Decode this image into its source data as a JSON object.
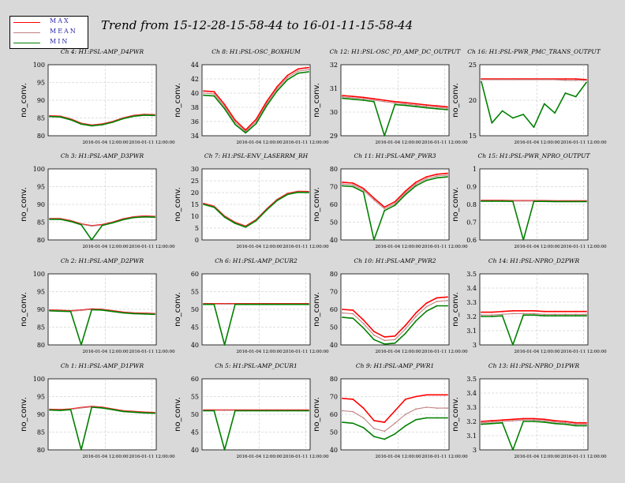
{
  "title": "Trend from 15-12-28-15-58-44 to 16-01-11-15-58-44",
  "legend": [
    {
      "label": "MAX",
      "color": "#ff0000"
    },
    {
      "label": "MEAN",
      "color": "#c08080"
    },
    {
      "label": "MIN",
      "color": "#008000"
    }
  ],
  "colors": {
    "max": "#ff0000",
    "mean": "#c08080",
    "min": "#008000",
    "panel_bg": "#ffffff",
    "grid": "#bfbfbf"
  },
  "chart_data": [
    {
      "title": "Ch 4: H1:PSL-AMP_D4PWR",
      "type": "line",
      "ylabel": "no_conv.",
      "ylim": [
        80,
        100
      ],
      "yticks": [
        "80",
        "85",
        "90",
        "95",
        "100"
      ],
      "xticks": [
        "2016-01-04 12:00:00",
        "2016-01-11 12:00:00"
      ],
      "series": [
        {
          "name": "MAX",
          "values": [
            85.6,
            85.5,
            84.7,
            83.5,
            83.0,
            83.3,
            84.0,
            85.0,
            85.7,
            86.0,
            85.9
          ]
        },
        {
          "name": "MEAN",
          "values": [
            85.5,
            85.4,
            84.6,
            83.4,
            82.9,
            83.2,
            83.9,
            84.9,
            85.6,
            85.9,
            85.8
          ]
        },
        {
          "name": "MIN",
          "values": [
            85.4,
            85.3,
            84.5,
            83.3,
            82.8,
            83.1,
            83.8,
            84.8,
            85.5,
            85.8,
            85.7
          ]
        }
      ]
    },
    {
      "title": "Ch 8: H1:PSL-OSC_BOXHUM",
      "type": "line",
      "ylabel": "no_conv.",
      "ylim": [
        34,
        44
      ],
      "yticks": [
        "34",
        "36",
        "38",
        "40",
        "42",
        "44"
      ],
      "xticks": [
        "2016-01-04 12:00:00",
        "2016-01-11 12:00:00"
      ],
      "series": [
        {
          "name": "MAX",
          "values": [
            40.3,
            40.2,
            38.4,
            36.2,
            34.8,
            36.3,
            38.8,
            40.9,
            42.5,
            43.4,
            43.6
          ]
        },
        {
          "name": "MEAN",
          "values": [
            40.0,
            39.9,
            38.1,
            35.9,
            34.6,
            36.0,
            38.5,
            40.6,
            42.2,
            43.1,
            43.3
          ]
        },
        {
          "name": "MIN",
          "values": [
            39.7,
            39.6,
            37.8,
            35.6,
            34.4,
            35.7,
            38.2,
            40.3,
            41.9,
            42.8,
            43.0
          ]
        }
      ]
    },
    {
      "title": "Ch 12: H1:PSL-OSC_PD_AMP_DC_OUTPUT",
      "type": "line",
      "ylabel": "no_conv.",
      "ylim": [
        29,
        32
      ],
      "yticks": [
        "29",
        "30",
        "31",
        "32"
      ],
      "xticks": [
        "2016-01-04 12:00:00",
        "2016-01-11 12:00:00"
      ],
      "series": [
        {
          "name": "MAX",
          "values": [
            30.7,
            30.66,
            30.62,
            30.56,
            30.5,
            30.44,
            30.4,
            30.35,
            30.3,
            30.26,
            30.22
          ]
        },
        {
          "name": "MEAN",
          "values": [
            30.64,
            30.6,
            30.56,
            30.5,
            30.44,
            30.38,
            30.34,
            30.29,
            30.24,
            30.2,
            30.16
          ]
        },
        {
          "name": "MIN",
          "values": [
            30.58,
            30.54,
            30.5,
            30.44,
            29.0,
            30.32,
            30.28,
            30.23,
            30.18,
            30.14,
            30.1
          ]
        }
      ]
    },
    {
      "title": "Ch 16: H1:PSL-PWR_PMC_TRANS_OUTPUT",
      "type": "line",
      "ylabel": "no_conv.",
      "ylim": [
        15,
        25
      ],
      "yticks": [
        "15",
        "20",
        "25"
      ],
      "xticks": [
        "2016-01-04 12:00:00",
        "2016-01-11 12:00:00"
      ],
      "series": [
        {
          "name": "MAX",
          "values": [
            23.0,
            23.0,
            23.0,
            23.0,
            23.0,
            23.0,
            23.0,
            23.0,
            23.0,
            23.0,
            22.9
          ]
        },
        {
          "name": "MEAN",
          "values": [
            22.9,
            22.9,
            22.9,
            22.9,
            22.9,
            22.9,
            22.9,
            22.9,
            22.8,
            22.8,
            22.8
          ]
        },
        {
          "name": "MIN",
          "values": [
            22.6,
            16.8,
            18.5,
            17.5,
            18.0,
            16.2,
            19.5,
            18.2,
            21.0,
            20.5,
            22.5
          ]
        }
      ]
    },
    {
      "title": "Ch 3: H1:PSL-AMP_D3PWR",
      "type": "line",
      "ylabel": "no_conv.",
      "ylim": [
        80,
        100
      ],
      "yticks": [
        "80",
        "85",
        "90",
        "95",
        "100"
      ],
      "xticks": [
        "2016-01-04 12:00:00",
        "2016-01-11 12:00:00"
      ],
      "series": [
        {
          "name": "MAX",
          "values": [
            86.0,
            86.0,
            85.4,
            84.5,
            84.0,
            84.3,
            85.0,
            85.9,
            86.5,
            86.7,
            86.6
          ]
        },
        {
          "name": "MEAN",
          "values": [
            85.9,
            85.9,
            85.3,
            84.4,
            83.9,
            84.2,
            84.9,
            85.8,
            86.4,
            86.6,
            86.5
          ]
        },
        {
          "name": "MIN",
          "values": [
            85.8,
            85.8,
            85.2,
            84.3,
            80.0,
            84.1,
            84.8,
            85.7,
            86.3,
            86.5,
            86.4
          ]
        }
      ]
    },
    {
      "title": "Ch 7: H1:PSL-ENV_LASERRM_RH",
      "type": "line",
      "ylabel": "no_conv.",
      "ylim": [
        0,
        30
      ],
      "yticks": [
        "0",
        "5",
        "10",
        "15",
        "20",
        "25",
        "30"
      ],
      "xticks": [
        "2016-01-04 12:00:00",
        "2016-01-11 12:00:00"
      ],
      "series": [
        {
          "name": "MAX",
          "values": [
            15.4,
            14.2,
            10.0,
            7.4,
            5.8,
            8.5,
            13.0,
            17.0,
            19.6,
            20.5,
            20.4
          ]
        },
        {
          "name": "MEAN",
          "values": [
            15.2,
            14.0,
            9.8,
            7.2,
            5.6,
            8.3,
            12.8,
            16.8,
            19.4,
            20.3,
            20.2
          ]
        },
        {
          "name": "MIN",
          "values": [
            15.0,
            13.8,
            9.6,
            7.0,
            5.4,
            8.1,
            12.6,
            16.6,
            19.2,
            20.1,
            20.0
          ]
        }
      ]
    },
    {
      "title": "Ch 11: H1:PSL-AMP_PWR3",
      "type": "line",
      "ylabel": "no_conv.",
      "ylim": [
        40,
        80
      ],
      "yticks": [
        "40",
        "50",
        "60",
        "70",
        "80"
      ],
      "xticks": [
        "2016-01-04 12:00:00",
        "2016-01-11 12:00:00"
      ],
      "series": [
        {
          "name": "MAX",
          "values": [
            72.5,
            72.0,
            69.0,
            63.5,
            58.5,
            61.5,
            67.5,
            72.5,
            75.5,
            77.0,
            77.5
          ]
        },
        {
          "name": "MEAN",
          "values": [
            71.5,
            71.0,
            68.0,
            62.5,
            57.5,
            60.5,
            66.5,
            71.5,
            74.5,
            76.0,
            76.5
          ]
        },
        {
          "name": "MIN",
          "values": [
            70.5,
            70.0,
            67.0,
            40.0,
            56.5,
            59.5,
            65.5,
            70.5,
            73.5,
            75.0,
            75.5
          ]
        }
      ]
    },
    {
      "title": "Ch 15: H1:PSL-PWR_NPRO_OUTPUT",
      "type": "line",
      "ylabel": "no_conv.",
      "ylim": [
        0.6,
        1
      ],
      "yticks": [
        "0.6",
        "0.7",
        "0.8",
        "0.9",
        "1"
      ],
      "xticks": [
        "2016-01-04 12:00:00",
        "2016-01-11 12:00:00"
      ],
      "series": [
        {
          "name": "MAX",
          "values": [
            0.822,
            0.822,
            0.822,
            0.821,
            0.821,
            0.821,
            0.821,
            0.82,
            0.82,
            0.82,
            0.82
          ]
        },
        {
          "name": "MEAN",
          "values": [
            0.82,
            0.82,
            0.82,
            0.819,
            0.819,
            0.819,
            0.819,
            0.818,
            0.818,
            0.818,
            0.818
          ]
        },
        {
          "name": "MIN",
          "values": [
            0.818,
            0.818,
            0.818,
            0.817,
            0.6,
            0.817,
            0.817,
            0.816,
            0.816,
            0.816,
            0.816
          ]
        }
      ]
    },
    {
      "title": "Ch 2: H1:PSL-AMP_D2PWR",
      "type": "line",
      "ylabel": "no_conv.",
      "ylim": [
        80,
        100
      ],
      "yticks": [
        "80",
        "85",
        "90",
        "95",
        "100"
      ],
      "xticks": [
        "2016-01-04 12:00:00",
        "2016-01-11 12:00:00"
      ],
      "series": [
        {
          "name": "MAX",
          "values": [
            89.8,
            89.7,
            89.6,
            89.8,
            90.1,
            90.0,
            89.6,
            89.2,
            89.0,
            88.9,
            88.8
          ]
        },
        {
          "name": "MEAN",
          "values": [
            89.7,
            89.6,
            89.5,
            89.7,
            90.0,
            89.9,
            89.5,
            89.1,
            88.9,
            88.8,
            88.7
          ]
        },
        {
          "name": "MIN",
          "values": [
            89.6,
            89.5,
            89.4,
            80.0,
            89.9,
            89.8,
            89.4,
            89.0,
            88.8,
            88.7,
            88.6
          ]
        }
      ]
    },
    {
      "title": "Ch 6: H1:PSL-AMP_DCUR2",
      "type": "line",
      "ylabel": "no_conv.",
      "ylim": [
        40,
        60
      ],
      "yticks": [
        "40",
        "45",
        "50",
        "55",
        "60"
      ],
      "xticks": [
        "2016-01-04 12:00:00",
        "2016-01-11 12:00:00"
      ],
      "series": [
        {
          "name": "MAX",
          "values": [
            51.6,
            51.6,
            51.6,
            51.6,
            51.6,
            51.6,
            51.6,
            51.6,
            51.6,
            51.6,
            51.6
          ]
        },
        {
          "name": "MEAN",
          "values": [
            51.5,
            51.5,
            51.5,
            51.5,
            51.5,
            51.5,
            51.5,
            51.5,
            51.5,
            51.5,
            51.5
          ]
        },
        {
          "name": "MIN",
          "values": [
            51.4,
            51.4,
            40.0,
            51.4,
            51.4,
            51.4,
            51.4,
            51.4,
            51.4,
            51.4,
            51.4
          ]
        }
      ]
    },
    {
      "title": "Ch 10: H1:PSL-AMP_PWR2",
      "type": "line",
      "ylabel": "no_conv.",
      "ylim": [
        40,
        80
      ],
      "yticks": [
        "40",
        "50",
        "60",
        "70",
        "80"
      ],
      "xticks": [
        "2016-01-04 12:00:00",
        "2016-01-11 12:00:00"
      ],
      "series": [
        {
          "name": "MAX",
          "values": [
            60.0,
            59.5,
            54.0,
            47.5,
            44.5,
            45.0,
            51.0,
            58.0,
            63.5,
            66.5,
            67.0
          ]
        },
        {
          "name": "MEAN",
          "values": [
            58.0,
            57.5,
            52.0,
            45.5,
            42.5,
            43.0,
            49.0,
            56.0,
            61.5,
            64.5,
            65.0
          ]
        },
        {
          "name": "MIN",
          "values": [
            55.5,
            55.0,
            49.5,
            43.0,
            40.5,
            41.0,
            46.5,
            53.5,
            59.0,
            62.0,
            62.0
          ]
        }
      ]
    },
    {
      "title": "Ch 14: H1:PSL-NPRO_D2PWR",
      "type": "line",
      "ylabel": "no_conv.",
      "ylim": [
        3,
        3.5
      ],
      "yticks": [
        "3",
        "3.1",
        "3.2",
        "3.3",
        "3.4",
        "3.5"
      ],
      "xticks": [
        "2016-01-04 12:00:00",
        "2016-01-11 12:00:00"
      ],
      "series": [
        {
          "name": "MAX",
          "values": [
            3.23,
            3.23,
            3.235,
            3.24,
            3.24,
            3.24,
            3.235,
            3.235,
            3.235,
            3.235,
            3.235
          ]
        },
        {
          "name": "MEAN",
          "values": [
            3.21,
            3.21,
            3.215,
            3.22,
            3.22,
            3.22,
            3.215,
            3.215,
            3.215,
            3.215,
            3.215
          ]
        },
        {
          "name": "MIN",
          "values": [
            3.2,
            3.2,
            3.205,
            3.0,
            3.21,
            3.21,
            3.205,
            3.205,
            3.205,
            3.205,
            3.205
          ]
        }
      ]
    },
    {
      "title": "Ch 1: H1:PSL-AMP_D1PWR",
      "type": "line",
      "ylabel": "no_conv.",
      "ylim": [
        80,
        100
      ],
      "yticks": [
        "80",
        "85",
        "90",
        "95",
        "100"
      ],
      "xticks": [
        "2016-01-04 12:00:00",
        "2016-01-11 12:00:00"
      ],
      "series": [
        {
          "name": "MAX",
          "values": [
            91.4,
            91.3,
            91.5,
            91.9,
            92.2,
            92.0,
            91.5,
            91.0,
            90.8,
            90.6,
            90.5
          ]
        },
        {
          "name": "MEAN",
          "values": [
            91.3,
            91.2,
            91.4,
            91.8,
            92.1,
            91.9,
            91.4,
            90.9,
            90.7,
            90.5,
            90.4
          ]
        },
        {
          "name": "MIN",
          "values": [
            91.2,
            91.1,
            91.3,
            80.0,
            92.0,
            91.8,
            91.3,
            90.8,
            90.6,
            90.4,
            90.3
          ]
        }
      ]
    },
    {
      "title": "Ch 5: H1:PSL-AMP_DCUR1",
      "type": "line",
      "ylabel": "no_conv.",
      "ylim": [
        40,
        60
      ],
      "yticks": [
        "40",
        "45",
        "50",
        "55",
        "60"
      ],
      "xticks": [
        "2016-01-04 12:00:00",
        "2016-01-11 12:00:00"
      ],
      "series": [
        {
          "name": "MAX",
          "values": [
            51.2,
            51.2,
            51.2,
            51.2,
            51.2,
            51.2,
            51.2,
            51.2,
            51.2,
            51.2,
            51.2
          ]
        },
        {
          "name": "MEAN",
          "values": [
            51.1,
            51.1,
            51.1,
            51.1,
            51.1,
            51.1,
            51.1,
            51.1,
            51.1,
            51.1,
            51.1
          ]
        },
        {
          "name": "MIN",
          "values": [
            51.0,
            51.0,
            40.0,
            51.0,
            51.0,
            51.0,
            51.0,
            51.0,
            51.0,
            51.0,
            51.0
          ]
        }
      ]
    },
    {
      "title": "Ch 9: H1:PSL-AMP_PWR1",
      "type": "line",
      "ylabel": "no_conv.",
      "ylim": [
        40,
        80
      ],
      "yticks": [
        "40",
        "50",
        "60",
        "70",
        "80"
      ],
      "xticks": [
        "2016-01-04 12:00:00",
        "2016-01-11 12:00:00"
      ],
      "series": [
        {
          "name": "MAX",
          "values": [
            69.0,
            68.5,
            63.5,
            56.5,
            55.5,
            62.0,
            68.5,
            70.0,
            71.0,
            71.0,
            71.0
          ]
        },
        {
          "name": "MEAN",
          "values": [
            62.0,
            61.5,
            58.0,
            52.0,
            50.5,
            55.0,
            60.0,
            63.0,
            64.0,
            63.5,
            63.5
          ]
        },
        {
          "name": "MIN",
          "values": [
            55.5,
            55.0,
            52.5,
            47.5,
            46.0,
            49.0,
            53.5,
            57.0,
            58.0,
            58.0,
            58.0
          ]
        }
      ]
    },
    {
      "title": "Ch 13: H1:PSL-NPRO_D1PWR",
      "type": "line",
      "ylabel": "no_conv.",
      "ylim": [
        3,
        3.5
      ],
      "yticks": [
        "3",
        "3.1",
        "3.2",
        "3.3",
        "3.4",
        "3.5"
      ],
      "xticks": [
        "2016-01-04 12:00:00",
        "2016-01-11 12:00:00"
      ],
      "series": [
        {
          "name": "MAX",
          "values": [
            3.2,
            3.205,
            3.21,
            3.215,
            3.22,
            3.22,
            3.215,
            3.205,
            3.2,
            3.19,
            3.19
          ]
        },
        {
          "name": "MEAN",
          "values": [
            3.19,
            3.195,
            3.2,
            3.205,
            3.21,
            3.21,
            3.205,
            3.195,
            3.19,
            3.18,
            3.18
          ]
        },
        {
          "name": "MIN",
          "values": [
            3.18,
            3.185,
            3.19,
            3.0,
            3.2,
            3.2,
            3.195,
            3.185,
            3.18,
            3.17,
            3.17
          ]
        }
      ]
    }
  ]
}
